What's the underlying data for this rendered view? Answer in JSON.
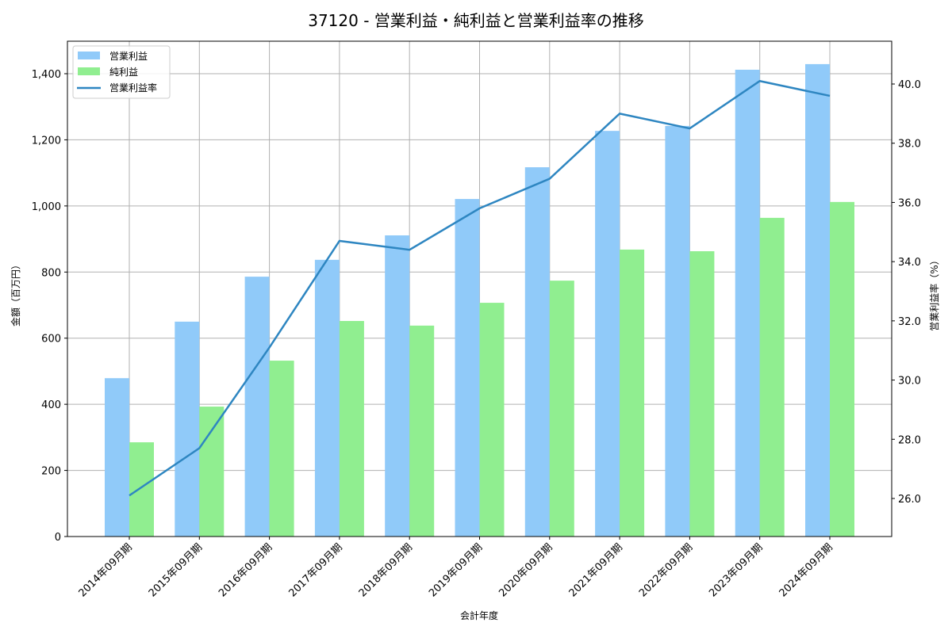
{
  "chart_data": {
    "type": "bar",
    "title": "37120 - 営業利益・純利益と営業利益率の推移",
    "xlabel": "会計年度",
    "ylabel": "金額（百万円）",
    "y2label": "営業利益率（%）",
    "categories": [
      "2014年09月期",
      "2015年09月期",
      "2016年09月期",
      "2017年09月期",
      "2018年09月期",
      "2019年09月期",
      "2020年09月期",
      "2021年09月期",
      "2022年09月期",
      "2023年09月期",
      "2024年09月期"
    ],
    "series": [
      {
        "name": "営業利益",
        "type": "bar",
        "axis": "left",
        "color": "#90CAF9",
        "values": [
          479,
          650,
          786,
          837,
          911,
          1021,
          1117,
          1227,
          1242,
          1412,
          1429
        ]
      },
      {
        "name": "純利益",
        "type": "bar",
        "axis": "left",
        "color": "#90EE90",
        "values": [
          285,
          393,
          532,
          652,
          638,
          707,
          774,
          868,
          863,
          964,
          1012
        ]
      },
      {
        "name": "営業利益率",
        "type": "line",
        "axis": "right",
        "color": "#2E86C1",
        "values": [
          26.1,
          27.7,
          31.1,
          34.7,
          34.4,
          35.8,
          36.8,
          39.0,
          38.5,
          40.1,
          39.6
        ]
      }
    ],
    "ylim": [
      0,
      1500
    ],
    "y2lim": [
      24.8,
      41.4
    ],
    "yticks": [
      0,
      200,
      400,
      600,
      800,
      1000,
      1200,
      1400
    ],
    "ytick_labels": [
      "0",
      "200",
      "400",
      "600",
      "800",
      "1,000",
      "1,200",
      "1,400"
    ],
    "y2ticks": [
      26,
      28,
      30,
      32,
      34,
      36,
      38,
      40
    ],
    "y2tick_labels": [
      "26.0",
      "28.0",
      "30.0",
      "32.0",
      "34.0",
      "36.0",
      "38.0",
      "40.0"
    ],
    "grid": true,
    "legend_position": "upper left"
  }
}
